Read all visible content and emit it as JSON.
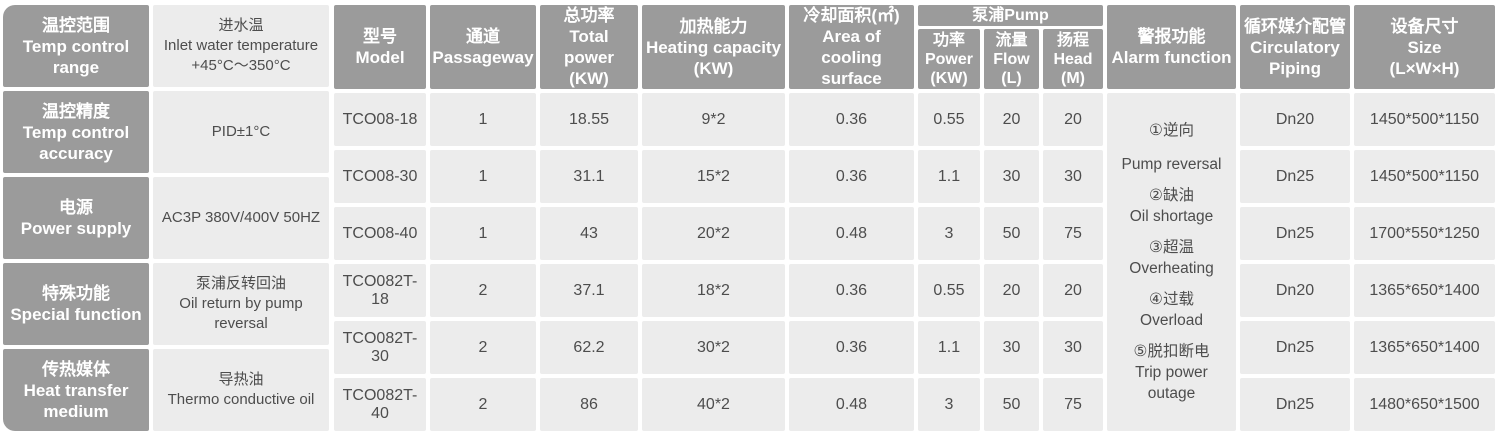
{
  "colors": {
    "header_bg": "#9b9b9b",
    "cell_bg": "#ececec",
    "header_text": "#ffffff",
    "cell_text": "#4d4d4d"
  },
  "left_panel": {
    "rows": [
      {
        "label_cn": "温控范围",
        "label_en": "Temp control range",
        "value_lines": [
          "进水温",
          "Inlet water temperature",
          "+45°C～350°C"
        ]
      },
      {
        "label_cn": "温控精度",
        "label_en": "Temp control accuracy",
        "value_lines": [
          "PID±1°C"
        ]
      },
      {
        "label_cn": "电源",
        "label_en": "Power supply",
        "value_lines": [
          "AC3P 380V/400V 50HZ"
        ]
      },
      {
        "label_cn": "特殊功能",
        "label_en": "Special function",
        "value_lines": [
          "泵浦反转回油",
          "Oil return by pump reversal"
        ]
      },
      {
        "label_cn": "传热媒体",
        "label_en": "Heat transfer medium",
        "value_lines": [
          "导热油",
          "Thermo conductive oil"
        ]
      }
    ]
  },
  "table": {
    "columns": {
      "model": [
        "型号",
        "Model"
      ],
      "passageway": [
        "通道",
        "Passageway"
      ],
      "total_power": [
        "总功率",
        "Total power",
        "(KW)"
      ],
      "heating_capacity": [
        "加热能力",
        "Heating capacity",
        "(KW)"
      ],
      "cooling_area": [
        "冷却面积(㎡)",
        "Area of cooling",
        "surface"
      ],
      "pump": {
        "title": "泵浦Pump",
        "power": [
          "功率",
          "Power",
          "(KW)"
        ],
        "flow": [
          "流量",
          "Flow",
          "(L)"
        ],
        "head": [
          "扬程",
          "Head",
          "(M)"
        ]
      },
      "alarm": [
        "警报功能",
        "Alarm function"
      ],
      "piping": [
        "循环媒介配管",
        "Circulatory",
        "Piping"
      ],
      "size": [
        "设备尺寸",
        "Size",
        "(L×W×H)"
      ]
    },
    "rows": [
      {
        "model": "TCO08-18",
        "passageway": "1",
        "total_power": "18.55",
        "heating": "9*2",
        "cooling": "0.36",
        "pump_power": "0.55",
        "flow": "20",
        "head": "20",
        "piping": "Dn20",
        "size": "1450*500*1150"
      },
      {
        "model": "TCO08-30",
        "passageway": "1",
        "total_power": "31.1",
        "heating": "15*2",
        "cooling": "0.36",
        "pump_power": "1.1",
        "flow": "30",
        "head": "30",
        "piping": "Dn25",
        "size": "1450*500*1150"
      },
      {
        "model": "TCO08-40",
        "passageway": "1",
        "total_power": "43",
        "heating": "20*2",
        "cooling": "0.48",
        "pump_power": "3",
        "flow": "50",
        "head": "75",
        "piping": "Dn25",
        "size": "1700*550*1250"
      },
      {
        "model": "TCO082T-18",
        "passageway": "2",
        "total_power": "37.1",
        "heating": "18*2",
        "cooling": "0.36",
        "pump_power": "0.55",
        "flow": "20",
        "head": "20",
        "piping": "Dn20",
        "size": "1365*650*1400"
      },
      {
        "model": "TCO082T-30",
        "passageway": "2",
        "total_power": "62.2",
        "heating": "30*2",
        "cooling": "0.36",
        "pump_power": "1.1",
        "flow": "30",
        "head": "30",
        "piping": "Dn25",
        "size": "1365*650*1400"
      },
      {
        "model": "TCO082T-40",
        "passageway": "2",
        "total_power": "86",
        "heating": "40*2",
        "cooling": "0.48",
        "pump_power": "3",
        "flow": "50",
        "head": "75",
        "piping": "Dn25",
        "size": "1480*650*1500"
      }
    ],
    "alarm_items": [
      {
        "cn": "①逆向",
        "en": "Pump reversal"
      },
      {
        "cn": "②缺油",
        "en": "Oil shortage"
      },
      {
        "cn": "③超温",
        "en": "Overheating"
      },
      {
        "cn": "④过载",
        "en": "Overload"
      },
      {
        "cn": "⑤脱扣断电",
        "en": "Trip power outage"
      }
    ]
  }
}
